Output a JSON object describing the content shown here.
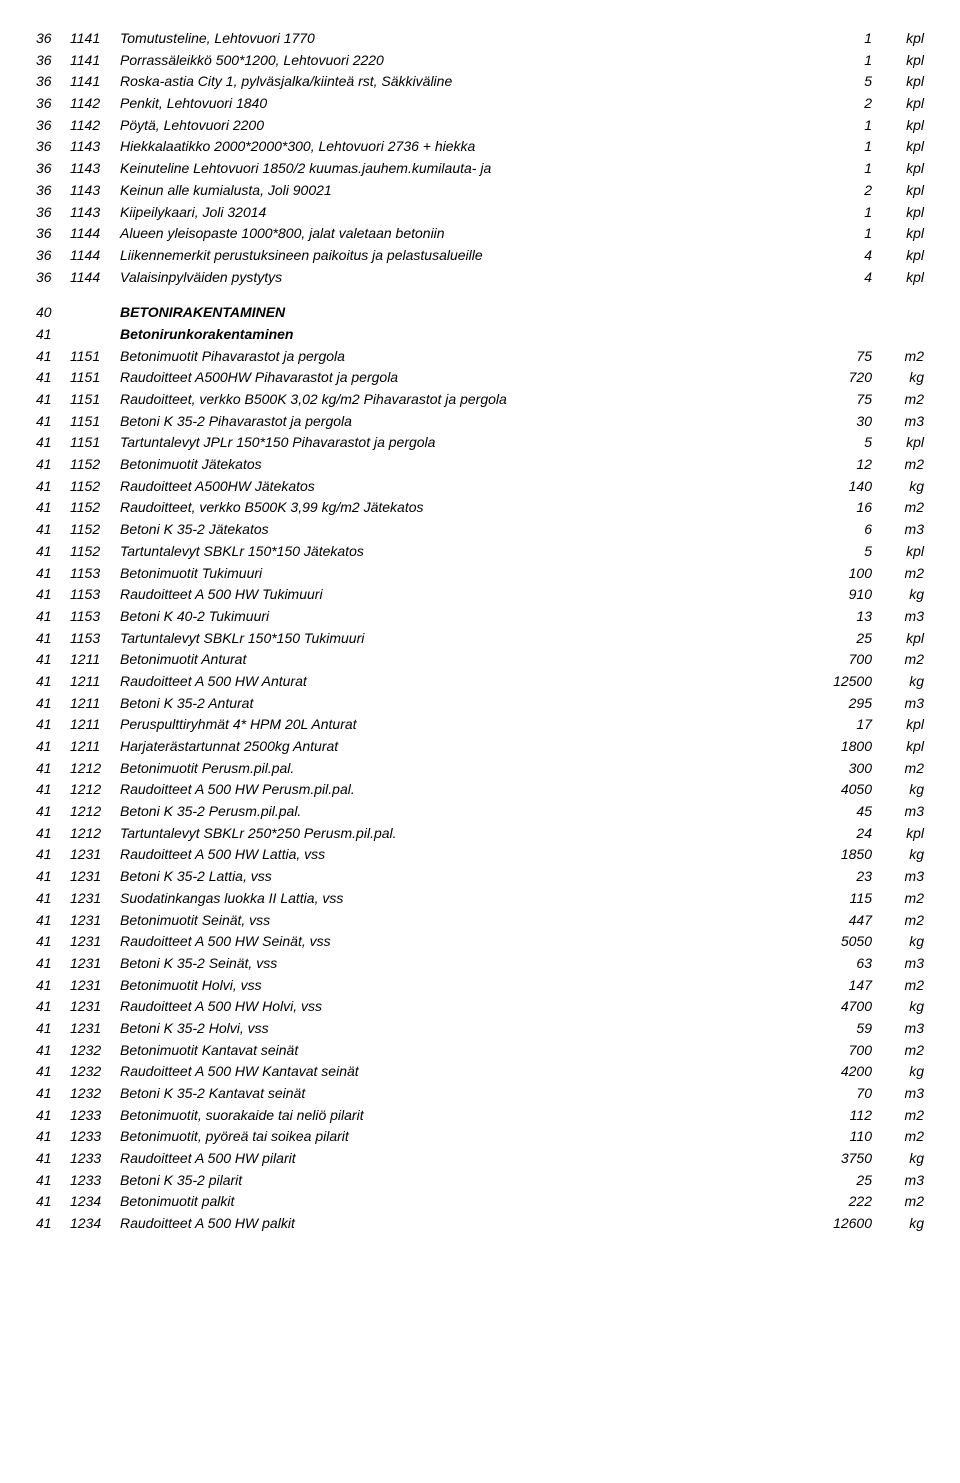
{
  "rows": [
    {
      "a": "36",
      "b": "1141",
      "desc": "Tomutusteline, Lehtovuori 1770",
      "qty": "1",
      "unit": "kpl"
    },
    {
      "a": "36",
      "b": "1141",
      "desc": "Porrassäleikkö 500*1200, Lehtovuori 2220",
      "qty": "1",
      "unit": "kpl"
    },
    {
      "a": "36",
      "b": "1141",
      "desc": "Roska-astia  City 1, pylväsjalka/kiinteä rst, Säkkiväline",
      "qty": "5",
      "unit": "kpl"
    },
    {
      "a": "36",
      "b": "1142",
      "desc": "Penkit, Lehtovuori 1840",
      "qty": "2",
      "unit": "kpl"
    },
    {
      "a": "36",
      "b": "1142",
      "desc": "Pöytä, Lehtovuori 2200",
      "qty": "1",
      "unit": "kpl"
    },
    {
      "a": "36",
      "b": "1143",
      "desc": "Hiekkalaatikko 2000*2000*300, Lehtovuori 2736 + hiekka",
      "qty": "1",
      "unit": "kpl"
    },
    {
      "a": "36",
      "b": "1143",
      "desc": "Keinuteline Lehtovuori 1850/2 kuumas.jauhem.kumilauta- ja",
      "qty": "1",
      "unit": "kpl"
    },
    {
      "a": "36",
      "b": "1143",
      "desc": "Keinun alle kumialusta, Joli 90021",
      "qty": "2",
      "unit": "kpl"
    },
    {
      "a": "36",
      "b": "1143",
      "desc": "Kiipeilykaari, Joli 32014",
      "qty": "1",
      "unit": "kpl"
    },
    {
      "a": "36",
      "b": "1144",
      "desc": "Alueen yleisopaste  1000*800, jalat valetaan betoniin",
      "qty": "1",
      "unit": "kpl"
    },
    {
      "a": "36",
      "b": "1144",
      "desc": "Liikennemerkit perustuksineen paikoitus ja pelastusalueille",
      "qty": "4",
      "unit": "kpl"
    },
    {
      "a": "36",
      "b": "1144",
      "desc": "Valaisinpylväiden pystytys",
      "qty": "4",
      "unit": "kpl"
    },
    {
      "spacer": true
    },
    {
      "a": "40",
      "b": "",
      "desc": "BETONIRAKENTAMINEN",
      "head": true
    },
    {
      "a": "41",
      "b": "",
      "desc": "Betonirunkorakentaminen",
      "head": true
    },
    {
      "a": "41",
      "b": "1151",
      "desc": "Betonimuotit Pihavarastot ja pergola",
      "qty": "75",
      "unit": "m2"
    },
    {
      "a": "41",
      "b": "1151",
      "desc": "Raudoitteet A500HW  Pihavarastot ja pergola",
      "qty": "720",
      "unit": "kg"
    },
    {
      "a": "41",
      "b": "1151",
      "desc": "Raudoitteet, verkko B500K  3,02 kg/m2  Pihavarastot ja pergola",
      "qty": "75",
      "unit": "m2"
    },
    {
      "a": "41",
      "b": "1151",
      "desc": "Betoni K 35-2  Pihavarastot ja pergola",
      "qty": "30",
      "unit": "m3"
    },
    {
      "a": "41",
      "b": "1151",
      "desc": "Tartuntalevyt JPLr 150*150  Pihavarastot ja pergola",
      "qty": "5",
      "unit": "kpl"
    },
    {
      "a": "41",
      "b": "1152",
      "desc": "Betonimuotit Jätekatos",
      "qty": "12",
      "unit": "m2"
    },
    {
      "a": "41",
      "b": "1152",
      "desc": "Raudoitteet A500HW  Jätekatos",
      "qty": "140",
      "unit": "kg"
    },
    {
      "a": "41",
      "b": "1152",
      "desc": "Raudoitteet, verkko B500K  3,99 kg/m2  Jätekatos",
      "qty": "16",
      "unit": "m2"
    },
    {
      "a": "41",
      "b": "1152",
      "desc": "Betoni K 35-2  Jätekatos",
      "qty": "6",
      "unit": "m3"
    },
    {
      "a": "41",
      "b": "1152",
      "desc": "Tartuntalevyt SBKLr 150*150  Jätekatos",
      "qty": "5",
      "unit": "kpl"
    },
    {
      "a": "41",
      "b": "1153",
      "desc": "Betonimuotit Tukimuuri",
      "qty": "100",
      "unit": "m2"
    },
    {
      "a": "41",
      "b": "1153",
      "desc": "Raudoitteet A 500 HW  Tukimuuri",
      "qty": "910",
      "unit": "kg"
    },
    {
      "a": "41",
      "b": "1153",
      "desc": "Betoni K 40-2  Tukimuuri",
      "qty": "13",
      "unit": "m3"
    },
    {
      "a": "41",
      "b": "1153",
      "desc": "Tartuntalevyt SBKLr 150*150 Tukimuuri",
      "qty": "25",
      "unit": "kpl"
    },
    {
      "a": "41",
      "b": "1211",
      "desc": "Betonimuotit Anturat",
      "qty": "700",
      "unit": "m2"
    },
    {
      "a": "41",
      "b": "1211",
      "desc": "Raudoitteet A 500 HW  Anturat",
      "qty": "12500",
      "unit": "kg"
    },
    {
      "a": "41",
      "b": "1211",
      "desc": "Betoni K 35-2 Anturat",
      "qty": "295",
      "unit": "m3"
    },
    {
      "a": "41",
      "b": "1211",
      "desc": "Peruspulttiryhmät 4* HPM 20L Anturat",
      "qty": "17",
      "unit": "kpl"
    },
    {
      "a": "41",
      "b": "1211",
      "desc": "Harjaterästartunnat 2500kg Anturat",
      "qty": "1800",
      "unit": "kpl"
    },
    {
      "a": "41",
      "b": "1212",
      "desc": "Betonimuotit Perusm.pil.pal.",
      "qty": "300",
      "unit": "m2"
    },
    {
      "a": "41",
      "b": "1212",
      "desc": "Raudoitteet A 500 HW  Perusm.pil.pal.",
      "qty": "4050",
      "unit": "kg"
    },
    {
      "a": "41",
      "b": "1212",
      "desc": "Betoni K 35-2  Perusm.pil.pal.",
      "qty": "45",
      "unit": "m3"
    },
    {
      "a": "41",
      "b": "1212",
      "desc": "Tartuntalevyt SBKLr 250*250 Perusm.pil.pal.",
      "qty": "24",
      "unit": "kpl"
    },
    {
      "a": "41",
      "b": "1231",
      "desc": "Raudoitteet A 500 HW  Lattia, vss",
      "qty": "1850",
      "unit": "kg"
    },
    {
      "a": "41",
      "b": "1231",
      "desc": "Betoni K 35-2  Lattia, vss",
      "qty": "23",
      "unit": "m3"
    },
    {
      "a": "41",
      "b": "1231",
      "desc": "Suodatinkangas luokka II Lattia, vss",
      "qty": "115",
      "unit": "m2"
    },
    {
      "a": "41",
      "b": "1231",
      "desc": "Betonimuotit Seinät, vss",
      "qty": "447",
      "unit": "m2"
    },
    {
      "a": "41",
      "b": "1231",
      "desc": "Raudoitteet A 500 HW Seinät, vss",
      "qty": "5050",
      "unit": "kg"
    },
    {
      "a": "41",
      "b": "1231",
      "desc": "Betoni K 35-2  Seinät, vss",
      "qty": "63",
      "unit": "m3"
    },
    {
      "a": "41",
      "b": "1231",
      "desc": "Betonimuotit Holvi, vss",
      "qty": "147",
      "unit": "m2"
    },
    {
      "a": "41",
      "b": "1231",
      "desc": "Raudoitteet A 500 HW  Holvi, vss",
      "qty": "4700",
      "unit": "kg"
    },
    {
      "a": "41",
      "b": "1231",
      "desc": "Betoni K 35-2 Holvi, vss",
      "qty": "59",
      "unit": "m3"
    },
    {
      "a": "41",
      "b": "1232",
      "desc": "Betonimuotit Kantavat seinät",
      "qty": "700",
      "unit": "m2"
    },
    {
      "a": "41",
      "b": "1232",
      "desc": "Raudoitteet A 500 HW  Kantavat seinät",
      "qty": "4200",
      "unit": "kg"
    },
    {
      "a": "41",
      "b": "1232",
      "desc": "Betoni K 35-2  Kantavat seinät",
      "qty": "70",
      "unit": "m3"
    },
    {
      "a": "41",
      "b": "1233",
      "desc": "Betonimuotit, suorakaide tai neliö pilarit",
      "qty": "112",
      "unit": "m2"
    },
    {
      "a": "41",
      "b": "1233",
      "desc": "Betonimuotit, pyöreä tai soikea pilarit",
      "qty": "110",
      "unit": "m2"
    },
    {
      "a": "41",
      "b": "1233",
      "desc": "Raudoitteet A 500 HW pilarit",
      "qty": "3750",
      "unit": "kg"
    },
    {
      "a": "41",
      "b": "1233",
      "desc": "Betoni K 35-2 pilarit",
      "qty": "25",
      "unit": "m3"
    },
    {
      "a": "41",
      "b": "1234",
      "desc": "Betonimuotit palkit",
      "qty": "222",
      "unit": "m2"
    },
    {
      "a": "41",
      "b": "1234",
      "desc": "Raudoitteet A 500 HW  palkit",
      "qty": "12600",
      "unit": "kg"
    }
  ]
}
